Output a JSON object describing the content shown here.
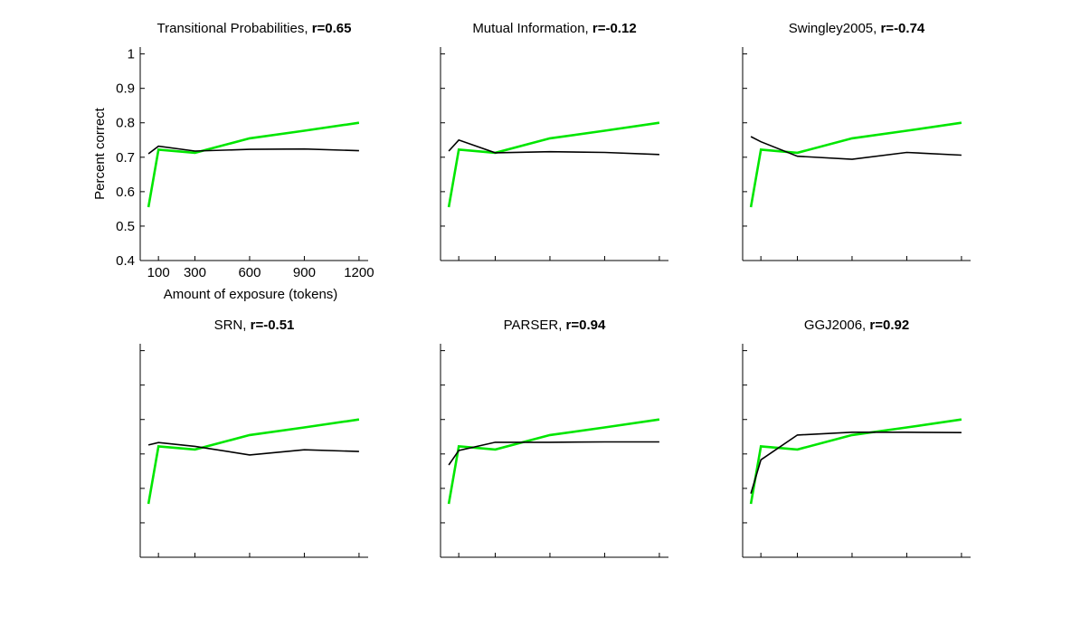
{
  "chart_data": [
    {
      "type": "line",
      "title": "Transitional Probabilities, ",
      "title_stat": "r=0.65",
      "xlabel": "Amount of exposure (tokens)",
      "ylabel": "Percent correct",
      "xlim": [
        0,
        1250
      ],
      "ylim": [
        0.4,
        1.02
      ],
      "xticks": [
        100,
        300,
        600,
        900,
        1200
      ],
      "yticks": [
        0.4,
        0.5,
        0.6,
        0.7,
        0.8,
        0.9,
        1
      ],
      "xticklabels": [
        "100",
        "300",
        "600",
        "900",
        "1200"
      ],
      "yticklabels": [
        "0.4",
        "0.5",
        "0.6",
        "0.7",
        "0.8",
        "0.9",
        "1"
      ],
      "show_tick_labels": true,
      "series": [
        {
          "color": "#00e600",
          "x": [
            45,
            100,
            300,
            600,
            900,
            1200
          ],
          "y": [
            0.555,
            0.722,
            0.713,
            0.755,
            0.777,
            0.8
          ]
        },
        {
          "color": "#000000",
          "x": [
            45,
            100,
            300,
            600,
            900,
            1200
          ],
          "y": [
            0.71,
            0.732,
            0.718,
            0.723,
            0.724,
            0.719
          ]
        }
      ]
    },
    {
      "type": "line",
      "title": "Mutual Information, ",
      "title_stat": "r=-0.12",
      "xlabel": "",
      "ylabel": "",
      "xlim": [
        0,
        1250
      ],
      "ylim": [
        0.4,
        1.02
      ],
      "xticks": [
        100,
        300,
        600,
        900,
        1200
      ],
      "yticks": [
        0.4,
        0.5,
        0.6,
        0.7,
        0.8,
        0.9,
        1
      ],
      "show_tick_labels": false,
      "series": [
        {
          "color": "#00e600",
          "x": [
            45,
            100,
            300,
            600,
            900,
            1200
          ],
          "y": [
            0.555,
            0.722,
            0.713,
            0.755,
            0.777,
            0.8
          ]
        },
        {
          "color": "#000000",
          "x": [
            45,
            100,
            300,
            600,
            900,
            1200
          ],
          "y": [
            0.718,
            0.75,
            0.713,
            0.716,
            0.714,
            0.708
          ]
        }
      ]
    },
    {
      "type": "line",
      "title": "Swingley2005, ",
      "title_stat": "r=-0.74",
      "xlabel": "",
      "ylabel": "",
      "xlim": [
        0,
        1250
      ],
      "ylim": [
        0.4,
        1.02
      ],
      "xticks": [
        100,
        300,
        600,
        900,
        1200
      ],
      "yticks": [
        0.4,
        0.5,
        0.6,
        0.7,
        0.8,
        0.9,
        1
      ],
      "show_tick_labels": false,
      "series": [
        {
          "color": "#00e600",
          "x": [
            45,
            100,
            300,
            600,
            900,
            1200
          ],
          "y": [
            0.555,
            0.722,
            0.713,
            0.755,
            0.777,
            0.8
          ]
        },
        {
          "color": "#000000",
          "x": [
            45,
            100,
            300,
            600,
            900,
            1200
          ],
          "y": [
            0.76,
            0.745,
            0.703,
            0.694,
            0.714,
            0.706
          ]
        }
      ]
    },
    {
      "type": "line",
      "title": "SRN, ",
      "title_stat": "r=-0.51",
      "xlabel": "",
      "ylabel": "",
      "xlim": [
        0,
        1250
      ],
      "ylim": [
        0.4,
        1.02
      ],
      "xticks": [
        100,
        300,
        600,
        900,
        1200
      ],
      "yticks": [
        0.4,
        0.5,
        0.6,
        0.7,
        0.8,
        0.9,
        1
      ],
      "show_tick_labels": false,
      "series": [
        {
          "color": "#00e600",
          "x": [
            45,
            100,
            300,
            600,
            900,
            1200
          ],
          "y": [
            0.555,
            0.722,
            0.713,
            0.755,
            0.777,
            0.8
          ]
        },
        {
          "color": "#000000",
          "x": [
            45,
            100,
            300,
            600,
            900,
            1200
          ],
          "y": [
            0.726,
            0.733,
            0.722,
            0.697,
            0.712,
            0.707
          ]
        }
      ]
    },
    {
      "type": "line",
      "title": "PARSER, ",
      "title_stat": "r=0.94",
      "xlabel": "",
      "ylabel": "",
      "xlim": [
        0,
        1250
      ],
      "ylim": [
        0.4,
        1.02
      ],
      "xticks": [
        100,
        300,
        600,
        900,
        1200
      ],
      "yticks": [
        0.4,
        0.5,
        0.6,
        0.7,
        0.8,
        0.9,
        1
      ],
      "show_tick_labels": false,
      "series": [
        {
          "color": "#00e600",
          "x": [
            45,
            100,
            300,
            600,
            900,
            1200
          ],
          "y": [
            0.555,
            0.722,
            0.713,
            0.755,
            0.777,
            0.8
          ]
        },
        {
          "color": "#000000",
          "x": [
            45,
            100,
            300,
            600,
            900,
            1200
          ],
          "y": [
            0.668,
            0.71,
            0.734,
            0.734,
            0.735,
            0.735
          ]
        }
      ]
    },
    {
      "type": "line",
      "title": "GGJ2006, ",
      "title_stat": "r=0.92",
      "xlabel": "",
      "ylabel": "",
      "xlim": [
        0,
        1250
      ],
      "ylim": [
        0.4,
        1.02
      ],
      "xticks": [
        100,
        300,
        600,
        900,
        1200
      ],
      "yticks": [
        0.4,
        0.5,
        0.6,
        0.7,
        0.8,
        0.9,
        1
      ],
      "show_tick_labels": false,
      "series": [
        {
          "color": "#00e600",
          "x": [
            45,
            100,
            300,
            600,
            900,
            1200
          ],
          "y": [
            0.555,
            0.722,
            0.713,
            0.755,
            0.777,
            0.8
          ]
        },
        {
          "color": "#000000",
          "x": [
            45,
            100,
            300,
            600,
            900,
            1200
          ],
          "y": [
            0.585,
            0.683,
            0.755,
            0.763,
            0.763,
            0.762
          ]
        }
      ]
    }
  ]
}
